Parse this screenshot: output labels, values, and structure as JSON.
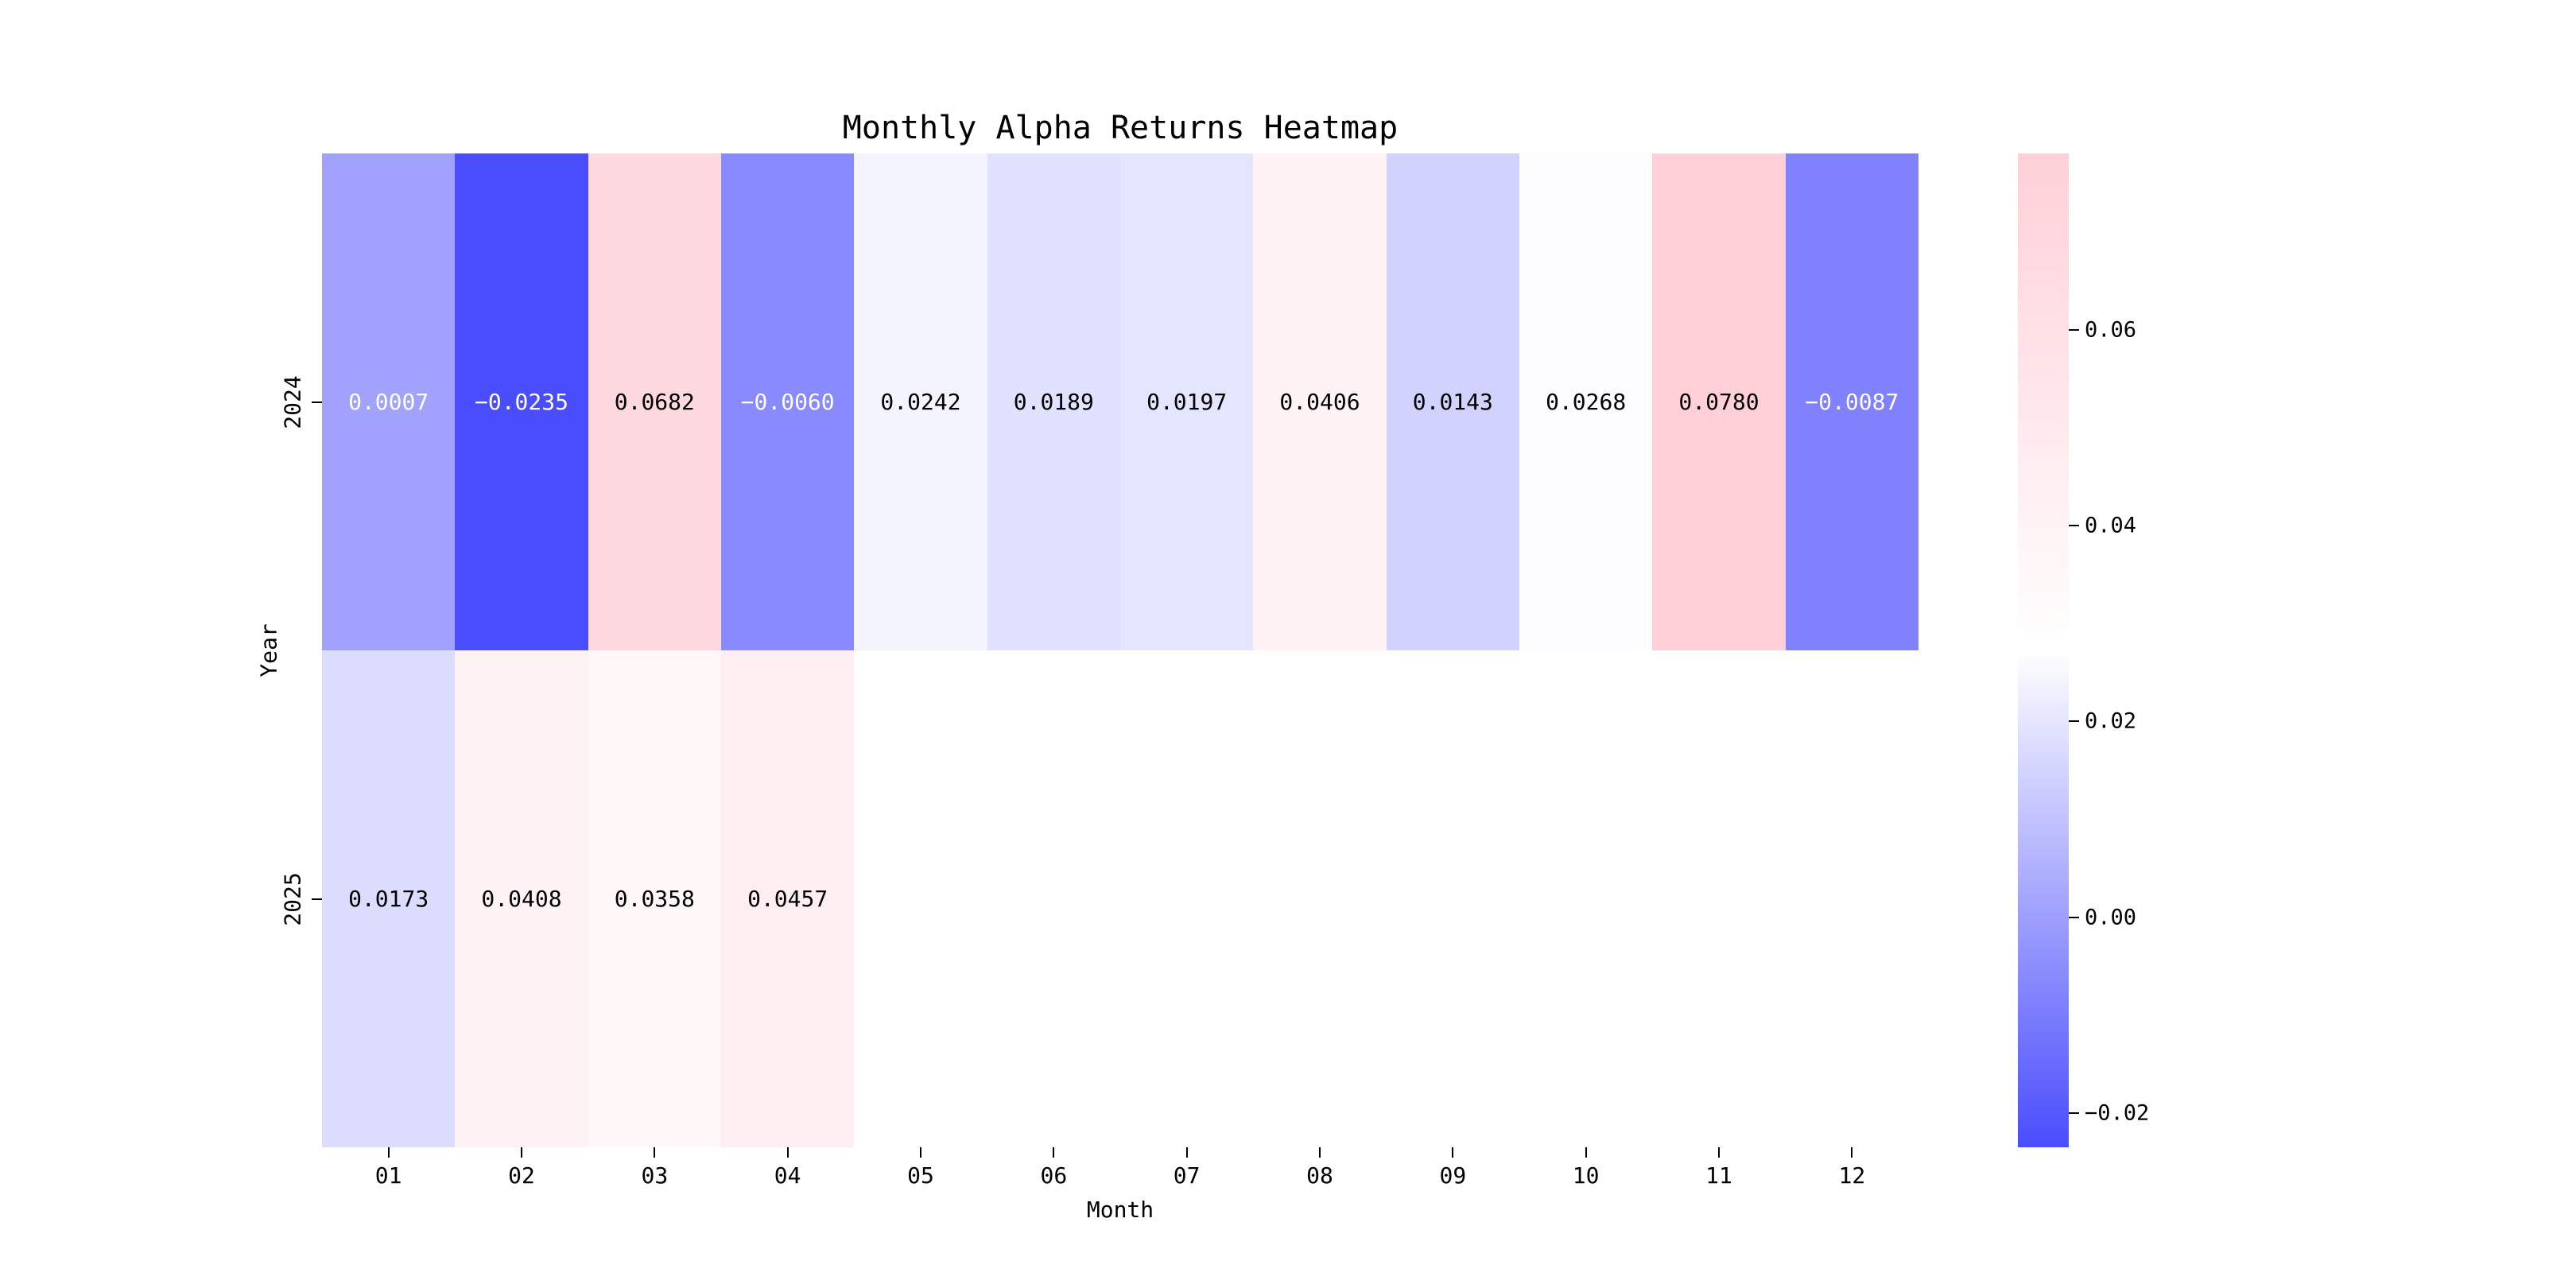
{
  "chart_data": {
    "type": "heatmap",
    "title": "Monthly Alpha Returns Heatmap",
    "xlabel": "Month",
    "ylabel": "Year",
    "x_categories": [
      "01",
      "02",
      "03",
      "04",
      "05",
      "06",
      "07",
      "08",
      "09",
      "10",
      "11",
      "12"
    ],
    "y_categories": [
      "2024",
      "2025"
    ],
    "matrix": [
      [
        0.0007,
        -0.0235,
        0.0682,
        -0.006,
        0.0242,
        0.0189,
        0.0197,
        0.0406,
        0.0143,
        0.0268,
        0.078,
        -0.0087
      ],
      [
        0.0173,
        0.0408,
        0.0358,
        0.0457,
        null,
        null,
        null,
        null,
        null,
        null,
        null,
        null
      ]
    ],
    "annotation_decimals": 4,
    "grid": false,
    "legend_position": "colorbar-right",
    "colormap": {
      "vmin": -0.0235,
      "vmax": 0.078,
      "low_color": "#4a4dfc",
      "mid_color": "#ffffff",
      "high_color": "#ffd0d8",
      "center": "midpoint"
    },
    "colorbar": {
      "ticks": [
        0.06,
        0.04,
        0.02,
        0.0,
        -0.02
      ],
      "tick_decimals": 2
    },
    "empty_cell_color": "#ffffff",
    "annotation_color_on_light": "#000000",
    "annotation_color_on_dark": "#ffffff"
  }
}
